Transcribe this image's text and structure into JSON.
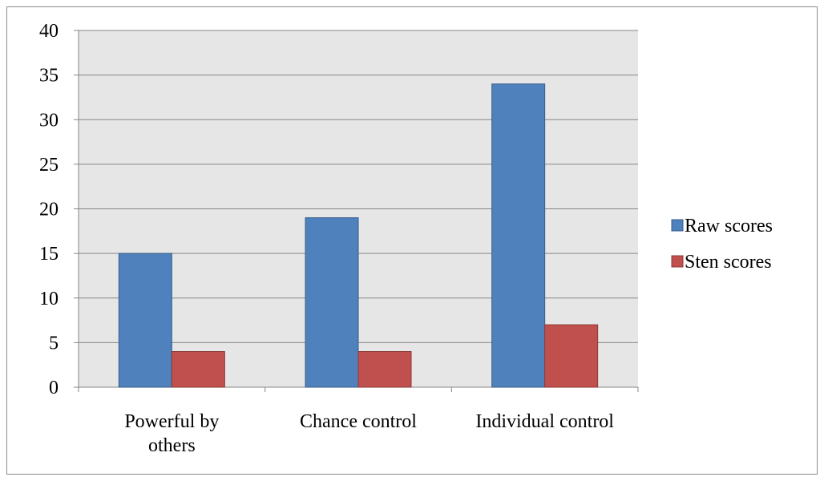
{
  "chart_data": {
    "type": "bar",
    "categories": [
      "Powerful by others",
      "Chance control",
      "Individual control"
    ],
    "category_label_lines": [
      [
        "Powerful by",
        "others"
      ],
      [
        "Chance control"
      ],
      [
        "Individual control"
      ]
    ],
    "series": [
      {
        "name": "Raw scores",
        "values": [
          15,
          19,
          34
        ],
        "color": "#4f81bd",
        "stroke": "#385d8a"
      },
      {
        "name": "Sten scores",
        "values": [
          4,
          4,
          7
        ],
        "color": "#c0504d",
        "stroke": "#8c3836"
      }
    ],
    "ylim": [
      0,
      40
    ],
    "yticks": [
      0,
      5,
      10,
      15,
      20,
      25,
      30,
      35,
      40
    ],
    "grid": true,
    "plot_background": "#e6e6e6",
    "legend_position": "right"
  }
}
